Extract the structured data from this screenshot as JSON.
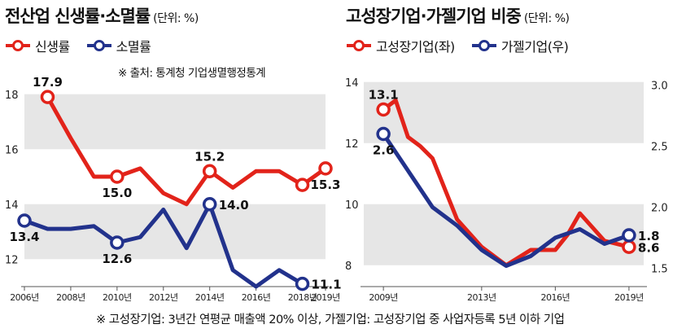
{
  "left_panel": {
    "title": "전산업 신생률·소멸률",
    "unit": "(단위: %)",
    "legend": [
      {
        "label": "신생률",
        "color": "#e2231a"
      },
      {
        "label": "소멸률",
        "color": "#22328c"
      }
    ],
    "source": "※ 출처: 통계청 기업생멸행정통계"
  },
  "right_panel": {
    "title": "고성장기업·가젤기업 비중",
    "unit": "(단위: %)",
    "legend": [
      {
        "label": "고성장기업(좌)",
        "color": "#e2231a"
      },
      {
        "label": "가젤기업(우)",
        "color": "#22328c"
      }
    ]
  },
  "footnote": "※ 고성장기업: 3년간 연평균 매출액 20% 이상, 가젤기업: 고성장기업 중 사업자등록 5년 이하 기업",
  "chart_data": [
    {
      "type": "line",
      "title": "전산업 신생률·소멸률",
      "unit": "%",
      "x": [
        2007,
        2008,
        2009,
        2010,
        2011,
        2012,
        2013,
        2014,
        2015,
        2016,
        2017,
        2018,
        2019
      ],
      "x_ticks": [
        "2006년",
        "2008년",
        "2010년",
        "2012년",
        "2014년",
        "2016년",
        "2018년",
        "2019년"
      ],
      "x_tick_values": [
        2006,
        2008,
        2010,
        2012,
        2014,
        2016,
        2018,
        2019
      ],
      "y_ticks": [
        "12",
        "14",
        "16",
        "18"
      ],
      "ylim": [
        11,
        19
      ],
      "shaded_bands": [
        [
          12,
          14
        ],
        [
          16,
          18
        ]
      ],
      "series": [
        {
          "name": "신생률",
          "color": "#e2231a",
          "x": [
            2007,
            2008,
            2009,
            2010,
            2011,
            2012,
            2013,
            2014,
            2015,
            2016,
            2017,
            2018,
            2019
          ],
          "values": [
            17.9,
            16.4,
            15.0,
            15.0,
            15.3,
            14.4,
            14.0,
            15.2,
            14.6,
            15.2,
            15.2,
            14.7,
            15.3
          ],
          "markers": [
            0,
            3,
            7,
            11,
            12
          ],
          "labels": [
            {
              "i": 0,
              "text": "17.9",
              "pos": "above"
            },
            {
              "i": 3,
              "text": "15.0",
              "pos": "below"
            },
            {
              "i": 7,
              "text": "15.2",
              "pos": "above"
            },
            {
              "i": 12,
              "text": "15.3",
              "pos": "below"
            }
          ]
        },
        {
          "name": "소멸률",
          "color": "#22328c",
          "x": [
            2006,
            2007,
            2008,
            2009,
            2010,
            2011,
            2012,
            2013,
            2014,
            2015,
            2016,
            2017,
            2018
          ],
          "values": [
            13.4,
            13.1,
            13.1,
            13.2,
            12.6,
            12.8,
            13.8,
            12.4,
            14.0,
            11.6,
            11.0,
            11.6,
            11.1
          ],
          "markers": [
            0,
            4,
            8,
            12
          ],
          "labels": [
            {
              "i": 0,
              "text": "13.4",
              "pos": "below"
            },
            {
              "i": 4,
              "text": "12.6",
              "pos": "below"
            },
            {
              "i": 8,
              "text": "14.0",
              "pos": "right"
            },
            {
              "i": 12,
              "text": "11.1",
              "pos": "right"
            }
          ]
        }
      ]
    },
    {
      "type": "line",
      "title": "고성장기업·가젤기업 비중",
      "unit": "%",
      "x_ticks": [
        "2009년",
        "2013년",
        "2016년",
        "2019년"
      ],
      "x_tick_values": [
        2009,
        2013,
        2016,
        2019
      ],
      "y_left_ticks": [
        "8",
        "10",
        "12",
        "14"
      ],
      "ylim_left": [
        7.3,
        14.5
      ],
      "y_right_ticks": [
        "1.5",
        "2.0",
        "2.5",
        "3.0"
      ],
      "ylim_right": [
        1.35,
        3.15
      ],
      "shaded_bands": [
        [
          8,
          10
        ],
        [
          12,
          14
        ]
      ],
      "series": [
        {
          "name": "고성장기업(좌)",
          "axis": "left",
          "color": "#e2231a",
          "x": [
            2009,
            2009.5,
            2010,
            2010.5,
            2011,
            2012,
            2013,
            2014,
            2015,
            2016,
            2016.5,
            2017,
            2018,
            2019
          ],
          "values": [
            13.1,
            13.4,
            12.2,
            11.9,
            11.5,
            9.5,
            8.6,
            8.0,
            8.5,
            8.5,
            9.0,
            9.7,
            8.8,
            8.6
          ],
          "markers": [
            0,
            13
          ],
          "labels": [
            {
              "i": 0,
              "text": "13.1",
              "pos": "above"
            },
            {
              "i": 13,
              "text": "8.6",
              "pos": "right"
            }
          ]
        },
        {
          "name": "가젤기업(우)",
          "axis": "right",
          "color": "#22328c",
          "x": [
            2009,
            2010,
            2011,
            2012,
            2013,
            2014,
            2015,
            2016,
            2017,
            2018,
            2019
          ],
          "values": [
            2.6,
            2.3,
            2.0,
            1.85,
            1.65,
            1.52,
            1.6,
            1.75,
            1.82,
            1.7,
            1.77
          ],
          "markers": [
            0,
            10
          ],
          "labels": [
            {
              "i": 0,
              "text": "2.6",
              "pos": "below"
            },
            {
              "i": 10,
              "text": "1.8",
              "pos": "right"
            }
          ]
        }
      ]
    }
  ]
}
